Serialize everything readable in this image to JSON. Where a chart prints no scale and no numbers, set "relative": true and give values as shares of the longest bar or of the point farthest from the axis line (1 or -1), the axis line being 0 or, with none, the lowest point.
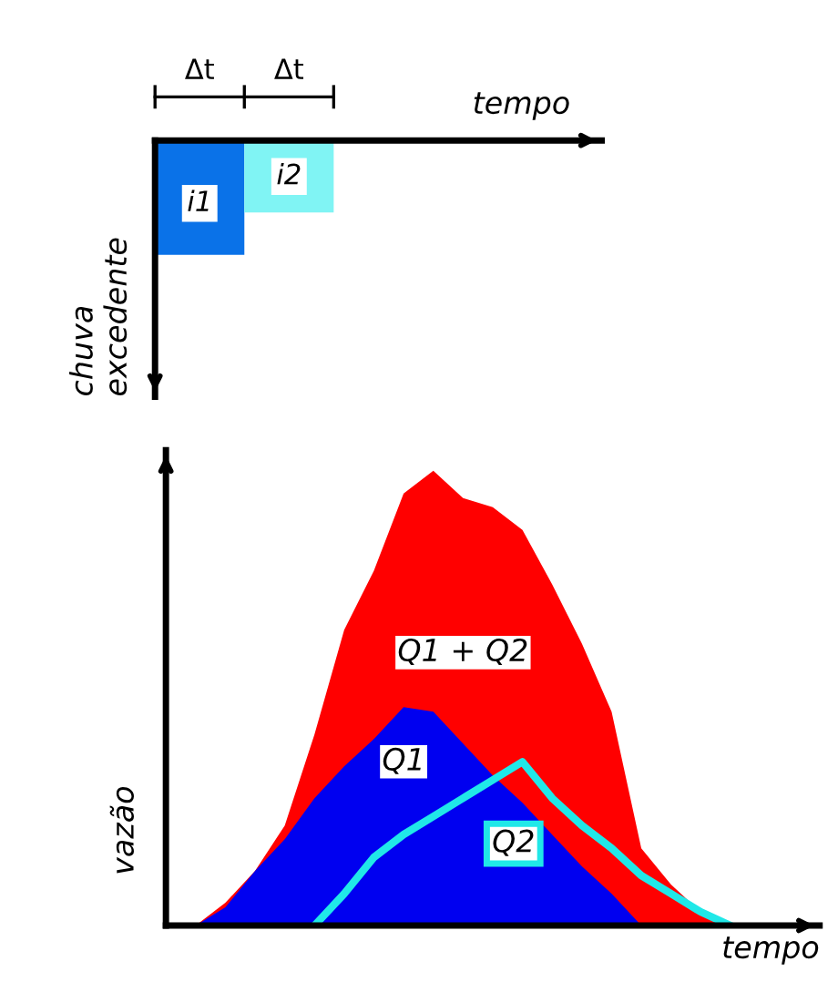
{
  "chart_data": [
    {
      "type": "bar",
      "relative": true,
      "xlabel": "tempo",
      "ylabel": "chuva\nexcedente",
      "categories": [
        "Δt",
        "Δt",
        null,
        null,
        null
      ],
      "values": [
        -1,
        -0.63,
        null,
        null,
        null
      ],
      "colors": [
        "#0a72e8",
        "#80f4f4",
        null,
        null,
        null
      ],
      "annotations": [
        "i1",
        "i2"
      ]
    },
    {
      "type": "area",
      "relative": true,
      "xlabel": "tempo",
      "ylabel": "vazão",
      "categories": [
        null,
        null,
        null,
        null,
        null,
        null,
        null,
        null,
        null,
        null,
        null,
        null,
        null,
        null,
        null,
        null,
        null,
        null,
        null,
        null,
        null,
        null,
        null
      ],
      "series": [
        {
          "name": "Q1 + Q2",
          "color": "#ff0000",
          "values": [
            0,
            0,
            0.05,
            0.12,
            0.22,
            0.42,
            0.65,
            0.78,
            0.95,
            1,
            0.94,
            0.92,
            0.87,
            0.75,
            0.62,
            0.47,
            0.17,
            0.09,
            0.03,
            0,
            0,
            0,
            0
          ]
        },
        {
          "name": "Q1",
          "color": "#0000f0",
          "values": [
            0,
            0,
            0.04,
            0.12,
            0.19,
            0.28,
            0.35,
            0.41,
            0.48,
            0.47,
            0.4,
            0.33,
            0.27,
            0.2,
            0.13,
            0.07,
            0,
            0,
            0,
            0,
            0,
            0,
            0
          ]
        },
        {
          "name": "Q2",
          "type": "line",
          "color": "#20e8e8",
          "values": [
            null,
            null,
            null,
            null,
            null,
            0,
            0.07,
            0.15,
            0.2,
            0.24,
            0.28,
            0.32,
            0.36,
            0.28,
            0.22,
            0.17,
            0.11,
            0.07,
            0.03,
            0,
            null,
            null,
            null
          ]
        }
      ]
    }
  ]
}
